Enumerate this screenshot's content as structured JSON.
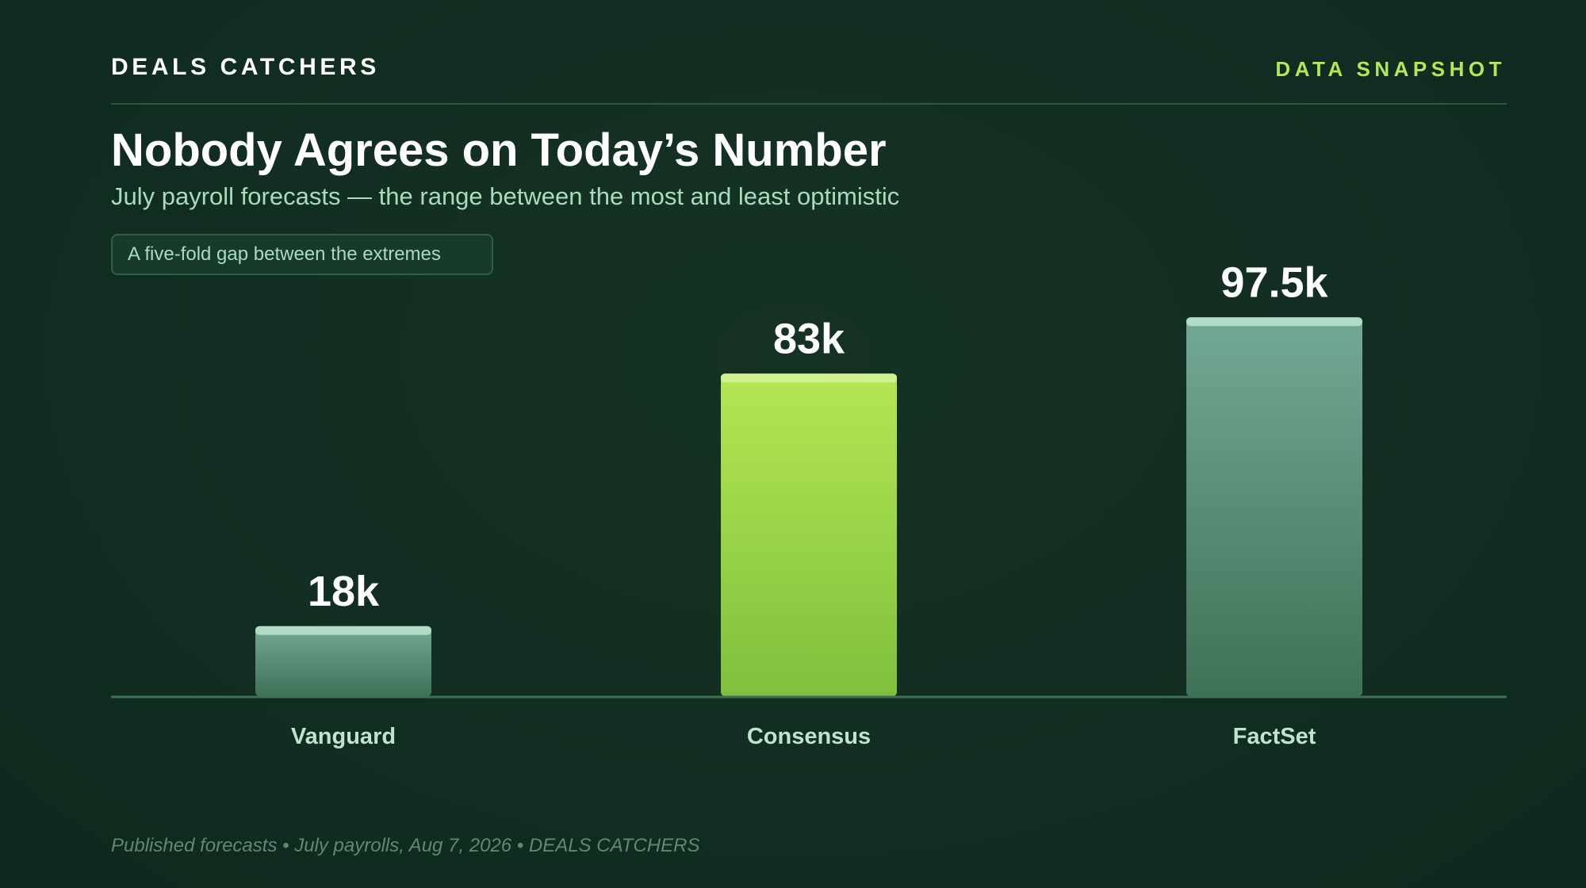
{
  "header": {
    "brand": "DEALS CATCHERS",
    "tag": "DATA SNAPSHOT"
  },
  "title": "Nobody Agrees on Today’s Number",
  "subtitle": "July payroll forecasts — the range between the most and least optimistic",
  "callout": "A five-fold gap between the extremes",
  "footer": "Published forecasts • July payrolls, Aug 7, 2026 • DEALS CATCHERS",
  "chart_data": {
    "type": "bar",
    "categories": [
      "Vanguard",
      "Consensus",
      "FactSet"
    ],
    "values": [
      18,
      83,
      97.5
    ],
    "value_labels": [
      "18k",
      "83k",
      "97.5k"
    ],
    "unit": "k",
    "ylim": [
      0,
      120
    ],
    "grid": false,
    "legend": "none",
    "bar_colors": [
      "#5e9a7e",
      "#9fd84a",
      "#5e9a7e"
    ]
  },
  "colors": {
    "accent": "#b5e653",
    "muted_bar_top": "#74a995",
    "muted_bar_bottom": "#3f7157",
    "accent_bar_top": "#b5e653",
    "accent_bar_bottom": "#7fc03d",
    "muted_cap": "#b2dcc5",
    "accent_cap": "#d2f28f",
    "category_label": "#bde4cc",
    "baseline": "#3c7254"
  }
}
